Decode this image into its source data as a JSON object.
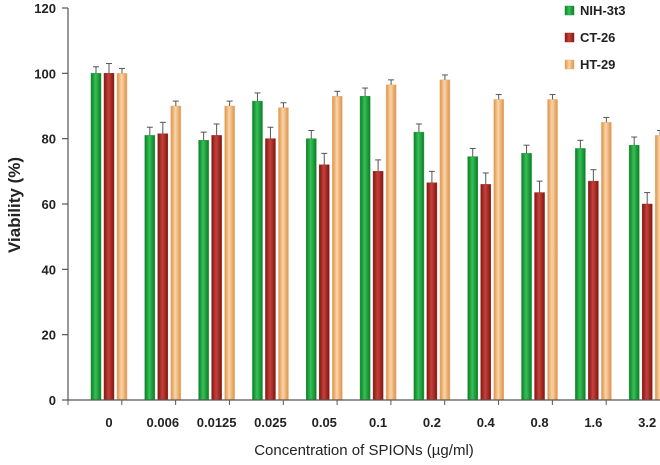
{
  "chart_data": {
    "type": "bar",
    "xlabel": "Concentration of SPIONs (µg/ml)",
    "ylabel": "Viability (%)",
    "ylim": [
      0,
      120
    ],
    "yticks": [
      0,
      20,
      40,
      60,
      80,
      100,
      120
    ],
    "legend_position": "top-right",
    "categories": [
      "0",
      "0.006",
      "0.0125",
      "0.025",
      "0.05",
      "0.1",
      "0.2",
      "0.4",
      "0.8",
      "1.6",
      "3.2"
    ],
    "series": [
      {
        "name": "NIH-3t3",
        "color": "#1e9e3c",
        "values": [
          100,
          81,
          79.5,
          91.5,
          80,
          93,
          82,
          74.5,
          75.5,
          77,
          78
        ],
        "errors": [
          2,
          2.5,
          2.5,
          2.5,
          2.5,
          2.5,
          2.5,
          2.5,
          2.5,
          2.5,
          2.5
        ]
      },
      {
        "name": "CT-26",
        "color": "#a82a24",
        "values": [
          100,
          81.5,
          81,
          80,
          72,
          70,
          66.5,
          66,
          63.5,
          67,
          60
        ],
        "errors": [
          3,
          3.5,
          3.5,
          3.5,
          3.5,
          3.5,
          3.5,
          3.5,
          3.5,
          3.5,
          3.5
        ]
      },
      {
        "name": "HT-29",
        "color": "#f2b577",
        "values": [
          100,
          90,
          90,
          89.5,
          93,
          96.5,
          98,
          92,
          92,
          85,
          81
        ],
        "errors": [
          1.5,
          1.5,
          1.5,
          1.5,
          1.5,
          1.5,
          1.5,
          1.5,
          1.5,
          1.5,
          1.5
        ]
      }
    ]
  }
}
